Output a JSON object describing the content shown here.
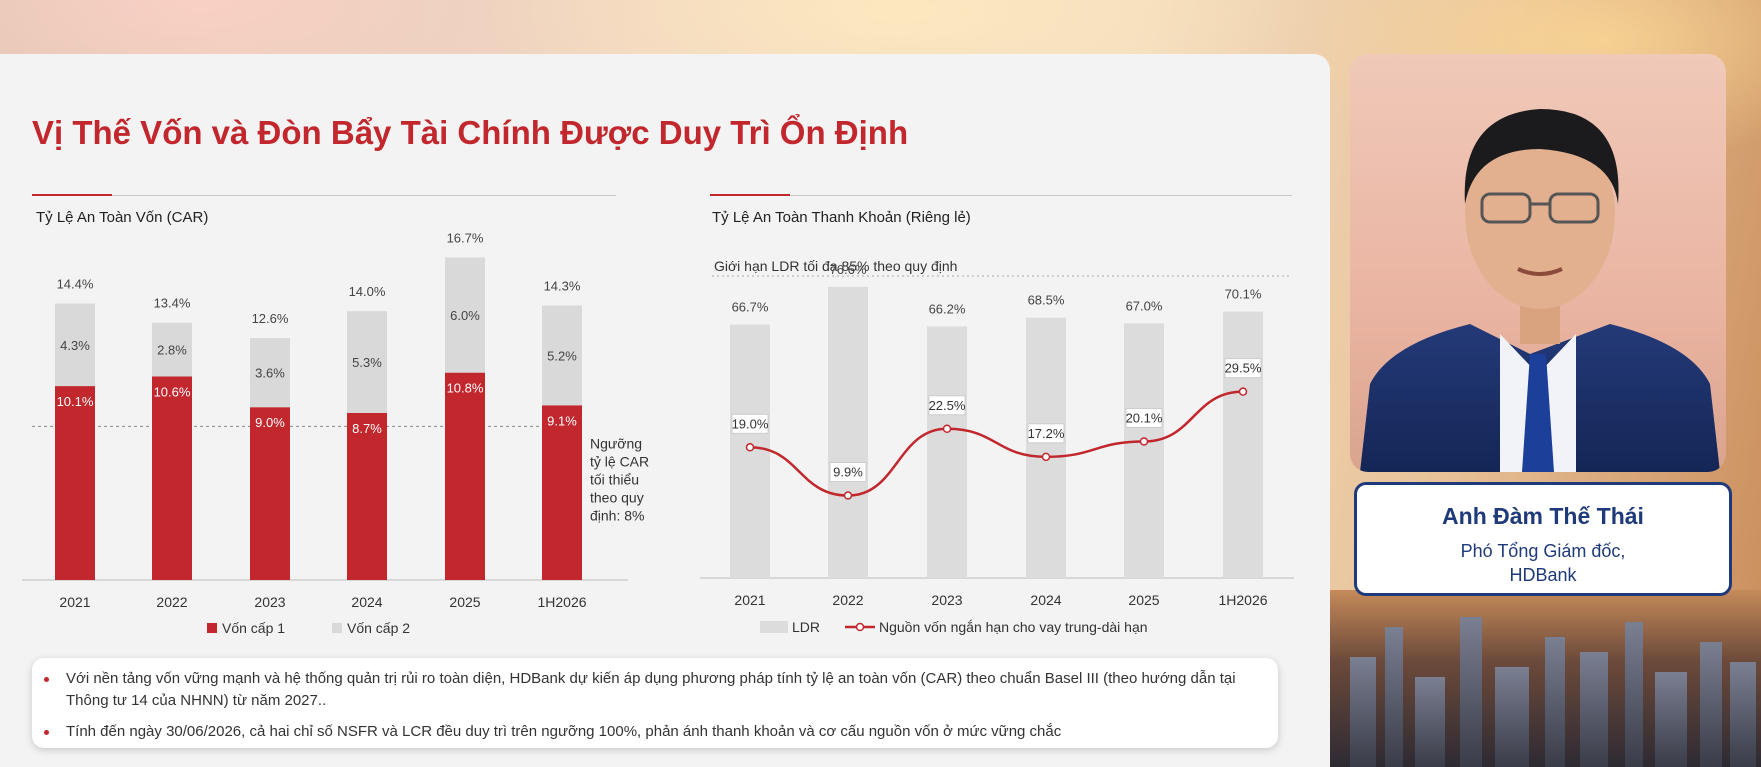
{
  "slide": {
    "title": "Vị Thế Vốn và Đòn Bẩy Tài Chính Được Duy Trì Ổn Định"
  },
  "colors": {
    "accent": "#c1272d",
    "tier2": "#d9d9d9",
    "ldr": "#dcdcdc",
    "line": "#c1272d",
    "nameplate": "#1f3a7a"
  },
  "chart_data": [
    {
      "type": "bar",
      "title": "Tỷ Lệ An Toàn Vốn (CAR)",
      "categories": [
        "2021",
        "2022",
        "2023",
        "2024",
        "2025",
        "1H2026"
      ],
      "series": [
        {
          "name": "Vốn cấp 1",
          "values": [
            10.1,
            10.6,
            9.0,
            8.7,
            10.8,
            9.1
          ],
          "labels": [
            "10.1%",
            "10.6%",
            "9.0%",
            "8.7%",
            "10.8%",
            "9.1%"
          ]
        },
        {
          "name": "Vốn cấp 2",
          "values": [
            4.3,
            2.8,
            3.6,
            5.3,
            6.0,
            5.2
          ],
          "labels": [
            "4.3%",
            "2.8%",
            "3.6%",
            "5.3%",
            "6.0%",
            "5.2%"
          ]
        }
      ],
      "totals": [
        "14.4%",
        "13.4%",
        "12.6%",
        "14.0%",
        "16.7%",
        "14.3%"
      ],
      "threshold": {
        "value": 8,
        "label_lines": [
          "Ngưỡng",
          "tỷ lệ CAR",
          "tối thiểu",
          "theo quy",
          "định: 8%"
        ]
      },
      "stacked": true,
      "legend_position": "bottom"
    },
    {
      "type": "bar",
      "title": "Tỷ Lệ An Toàn Thanh Khoản (Riêng lẻ)",
      "annotation": "Giới hạn LDR tối đa 85% theo quy định",
      "categories": [
        "2021",
        "2022",
        "2023",
        "2024",
        "2025",
        "1H2026"
      ],
      "series": [
        {
          "name": "LDR",
          "type": "bar",
          "values": [
            66.7,
            76.6,
            66.2,
            68.5,
            67.0,
            70.1
          ],
          "labels": [
            "66.7%",
            "76.6%",
            "66.2%",
            "68.5%",
            "67.0%",
            "70.1%"
          ]
        },
        {
          "name": "Nguồn vốn ngắn hạn cho vay trung-dài hạn",
          "type": "line",
          "values": [
            19.0,
            9.9,
            22.5,
            17.2,
            20.1,
            29.5
          ],
          "labels": [
            "19.0%",
            "9.9%",
            "22.5%",
            "17.2%",
            "20.1%",
            "29.5%"
          ]
        }
      ],
      "legend_position": "bottom"
    }
  ],
  "notes": [
    "Với nền tảng vốn vững mạnh và hệ thống quản trị rủi ro toàn diện, HDBank dự kiến áp dụng phương pháp tính tỷ lệ an toàn vốn (CAR) theo chuẩn Basel III (theo hướng dẫn tại Thông tư 14 của NHNN) từ năm 2027..",
    "Tính đến ngày 30/06/2026, cả hai chỉ số NSFR và LCR đều duy trì trên ngưỡng 100%, phản ánh thanh khoản và cơ cấu nguồn vốn ở mức vững chắc"
  ],
  "speaker": {
    "name": "Anh Đàm Thế Thái",
    "role_line1": "Phó Tổng Giám đốc,",
    "role_line2": "HDBank"
  }
}
